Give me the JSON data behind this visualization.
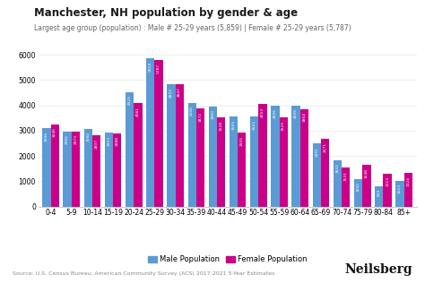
{
  "title": "Manchester, NH population by gender & age",
  "subtitle": "Largest age group (population) : Male # 25-29 years (5,859) | Female # 25-29 years (5,787)",
  "categories": [
    "0-4",
    "5-9",
    "10-14",
    "15-19",
    "20-24",
    "25-29",
    "30-34",
    "35-39",
    "40-44",
    "45-49",
    "50-54",
    "55-59",
    "60-64",
    "65-69",
    "70-74",
    "75-79",
    "80-84",
    "85+"
  ],
  "male": [
    3094,
    2966,
    3084,
    2913,
    4525,
    5859,
    4823,
    4106,
    3960,
    3565,
    3551,
    4005,
    4005,
    2491,
    1832,
    1092,
    813,
    1023
  ],
  "female": [
    3246,
    2973,
    2807,
    2888,
    4081,
    5787,
    4847,
    3872,
    3528,
    2925,
    4053,
    3525,
    3864,
    2671,
    1531,
    1648,
    1313,
    1324
  ],
  "male_color": "#5b9bd5",
  "female_color": "#cc0088",
  "background_color": "#ffffff",
  "bar_labels_color": "#ffffff",
  "ylabel_vals": [
    0,
    1000,
    2000,
    3000,
    4000,
    5000,
    6000
  ],
  "source_text": "Source: U.S. Census Bureau, American Community Survey (ACS) 2017-2021 5-Year Estimates",
  "brand": "Neilsberg",
  "title_fontsize": 8.5,
  "subtitle_fontsize": 5.5,
  "bar_label_fontsize": 3.2,
  "legend_fontsize": 6,
  "tick_fontsize": 5.5,
  "source_fontsize": 4.5,
  "brand_fontsize": 10
}
